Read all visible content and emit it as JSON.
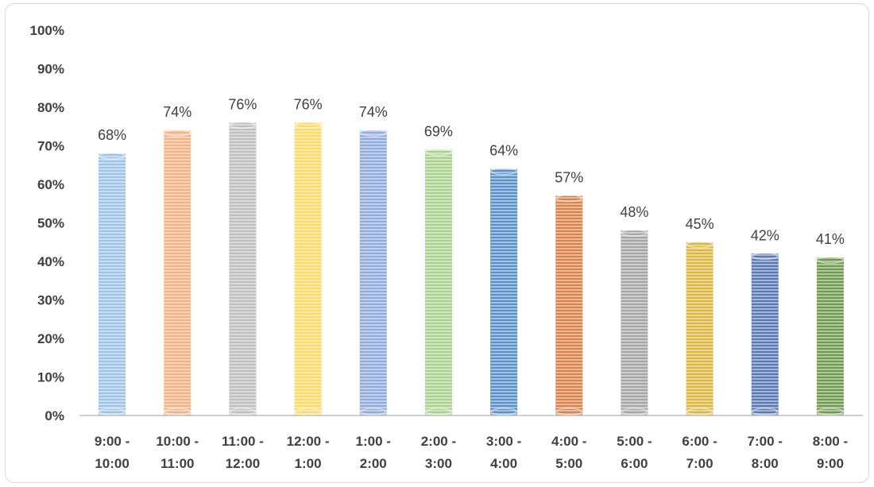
{
  "chart_data": {
    "type": "bar",
    "categories": [
      [
        "9:00 -",
        "10:00"
      ],
      [
        "10:00 -",
        "11:00"
      ],
      [
        "11:00 -",
        "12:00"
      ],
      [
        "12:00 -",
        "1:00"
      ],
      [
        "1:00 -",
        "2:00"
      ],
      [
        "2:00 -",
        "3:00"
      ],
      [
        "3:00 -",
        "4:00"
      ],
      [
        "4:00 -",
        "5:00"
      ],
      [
        "5:00 -",
        "6:00"
      ],
      [
        "6:00 -",
        "7:00"
      ],
      [
        "7:00 -",
        "8:00"
      ],
      [
        "8:00 -",
        "9:00"
      ]
    ],
    "values": [
      68,
      74,
      76,
      76,
      74,
      69,
      64,
      57,
      48,
      45,
      42,
      41
    ],
    "data_labels": [
      "68%",
      "74%",
      "76%",
      "76%",
      "74%",
      "69%",
      "64%",
      "57%",
      "48%",
      "45%",
      "42%",
      "41%"
    ],
    "colors": [
      "#9dc3e6",
      "#f4b183",
      "#bfbfbf",
      "#ffd966",
      "#8faadc",
      "#a9d18e",
      "#5b8fc9",
      "#d9824a",
      "#a5a5a5",
      "#dbb640",
      "#5a78b4",
      "#6f9a4f"
    ],
    "y_ticks": [
      "0%",
      "10%",
      "20%",
      "30%",
      "40%",
      "50%",
      "60%",
      "70%",
      "80%",
      "90%",
      "100%"
    ],
    "ylim": [
      0,
      100
    ],
    "title": "",
    "xlabel": "",
    "ylabel": "",
    "grid": false,
    "legend": "none"
  }
}
